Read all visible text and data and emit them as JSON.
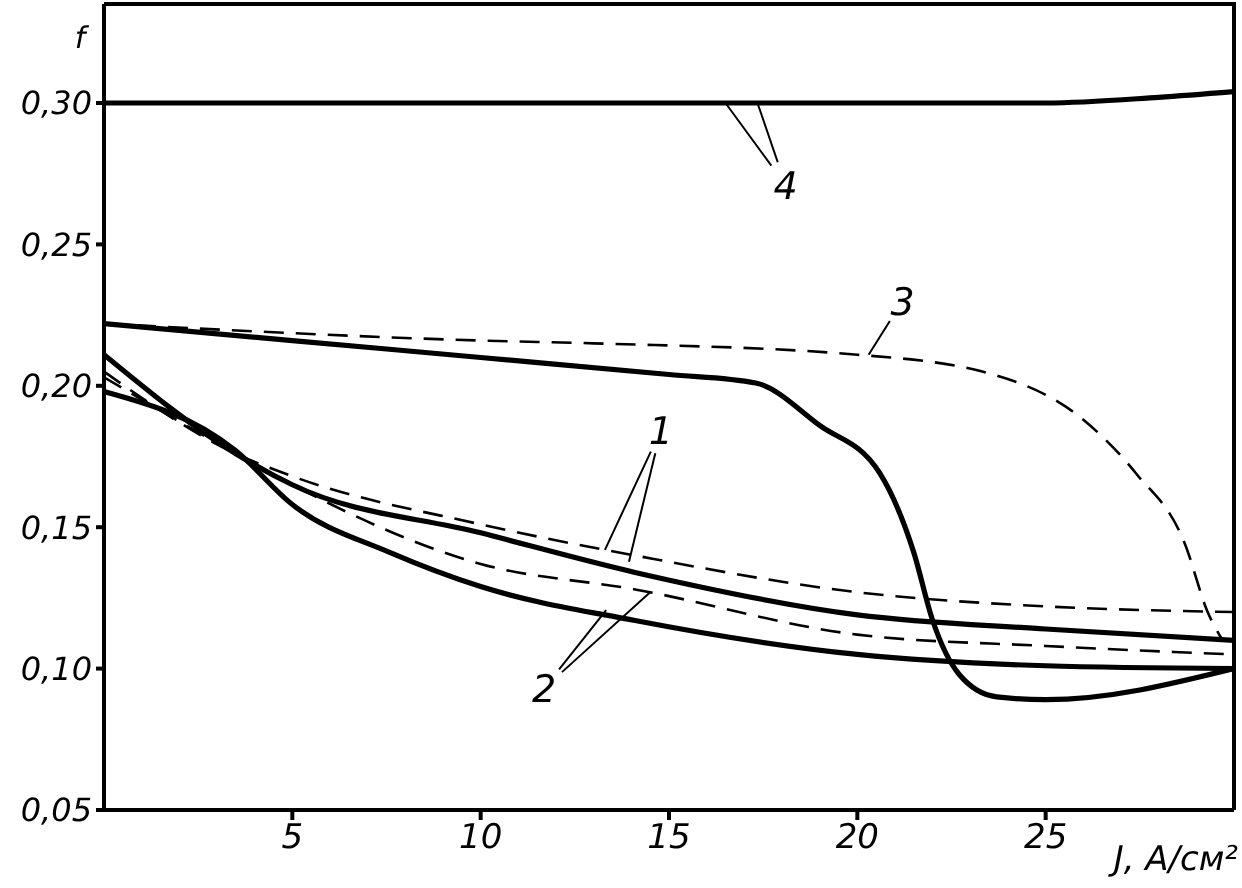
{
  "chart_data": {
    "type": "line",
    "xlabel": "J, A/см²",
    "ylabel": "f",
    "xlim": [
      0,
      30
    ],
    "ylim": [
      0.05,
      0.335
    ],
    "xticks": [
      5,
      10,
      15,
      20,
      25
    ],
    "yticks": [
      {
        "value": 0.05,
        "label": "0,05"
      },
      {
        "value": 0.1,
        "label": "0,10"
      },
      {
        "value": 0.15,
        "label": "0,15"
      },
      {
        "value": 0.2,
        "label": "0,20"
      },
      {
        "value": 0.25,
        "label": "0,25"
      },
      {
        "value": 0.3,
        "label": "0,30"
      }
    ],
    "grid": false,
    "legend": false,
    "marker": "none",
    "series": [
      {
        "color": "#000000",
        "line_style": "solid",
        "x": [
          0,
          5,
          10,
          15,
          20,
          25,
          28,
          30
        ],
        "values": [
          0.3,
          0.3,
          0.3,
          0.3,
          0.3,
          0.3,
          0.302,
          0.304
        ]
      },
      {
        "color": "#000000",
        "line_style": "solid",
        "x": [
          0,
          5,
          10,
          15,
          17.3,
          19,
          20.6,
          21.5,
          22,
          22.7,
          23.7,
          25,
          30
        ],
        "values": [
          0.222,
          0.216,
          0.21,
          0.204,
          0.201,
          0.186,
          0.169,
          0.141,
          0.117,
          0.098,
          0.09,
          0.089,
          0.1
        ]
      },
      {
        "color": "#000000",
        "line_style": "dashed",
        "x": [
          0,
          10,
          13,
          20,
          23.6,
          26,
          27.4,
          28.7,
          29.3,
          29.7
        ],
        "values": [
          0.222,
          0.216,
          0.215,
          0.211,
          0.204,
          0.188,
          0.169,
          0.144,
          0.12,
          0.11
        ]
      },
      {
        "color": "#000000",
        "line_style": "solid",
        "x": [
          0,
          3.5,
          5,
          10,
          14.1,
          20,
          25,
          30
        ],
        "values": [
          0.211,
          0.176,
          0.165,
          0.148,
          0.134,
          0.119,
          0.114,
          0.11
        ]
      },
      {
        "color": "#000000",
        "line_style": "dashed",
        "x": [
          0,
          3.5,
          5,
          10,
          14.1,
          20,
          25,
          30
        ],
        "values": [
          0.205,
          0.176,
          0.168,
          0.151,
          0.14,
          0.127,
          0.122,
          0.12
        ]
      },
      {
        "color": "#000000",
        "line_style": "dashed",
        "x": [
          0,
          3.5,
          5,
          10,
          14.1,
          20,
          25,
          30
        ],
        "values": [
          0.203,
          0.176,
          0.165,
          0.137,
          0.128,
          0.112,
          0.108,
          0.105
        ]
      },
      {
        "color": "#000000",
        "line_style": "solid",
        "x": [
          0,
          3.5,
          5,
          7.6,
          10,
          14.1,
          20,
          25,
          30
        ],
        "values": [
          0.198,
          0.177,
          0.158,
          0.141,
          0.129,
          0.117,
          0.105,
          0.101,
          0.1
        ]
      }
    ],
    "annotations": [
      {
        "text": "4",
        "x": 16.5,
        "y": 0.3
      },
      {
        "text": "3",
        "x": 20.3,
        "y": 0.211
      },
      {
        "text": "1",
        "x": 13.3,
        "y": 0.142
      },
      {
        "text": "2",
        "x": 14.5,
        "y": 0.127
      }
    ]
  }
}
